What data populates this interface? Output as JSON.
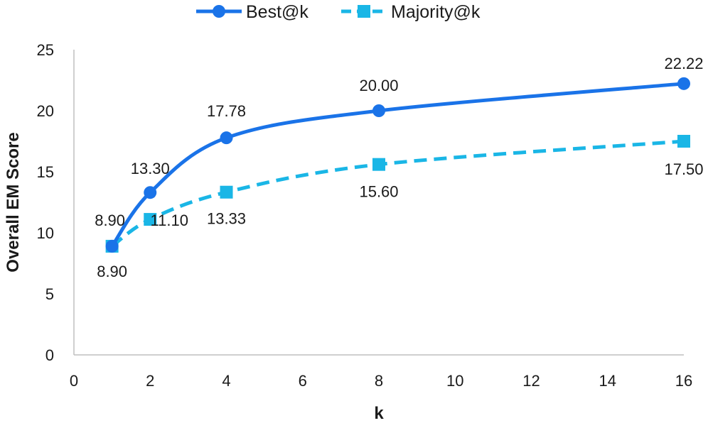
{
  "chart_data": {
    "type": "line",
    "title": "",
    "xlabel": "k",
    "ylabel": "Overall EM Score",
    "xlim": [
      0,
      16
    ],
    "ylim": [
      0,
      25
    ],
    "xticks": [
      0,
      2,
      4,
      6,
      8,
      10,
      12,
      14,
      16
    ],
    "yticks": [
      0,
      5,
      10,
      15,
      20,
      25
    ],
    "grid": false,
    "legend_position": "top-center",
    "x": [
      1,
      2,
      4,
      8,
      16
    ],
    "series": [
      {
        "name": "Best@k",
        "color": "#1a73e8",
        "line_style": "solid",
        "marker": "circle",
        "values": [
          8.9,
          13.3,
          17.78,
          20.0,
          22.22
        ],
        "labels": [
          "8.90",
          "13.30",
          "17.78",
          "20.00",
          "22.22"
        ]
      },
      {
        "name": "Majority@k",
        "color": "#1ab6e6",
        "line_style": "dashed",
        "marker": "square",
        "values": [
          8.9,
          11.1,
          13.33,
          15.6,
          17.5
        ],
        "labels": [
          "8.90",
          "11.10",
          "13.33",
          "15.60",
          "17.50"
        ]
      }
    ]
  }
}
